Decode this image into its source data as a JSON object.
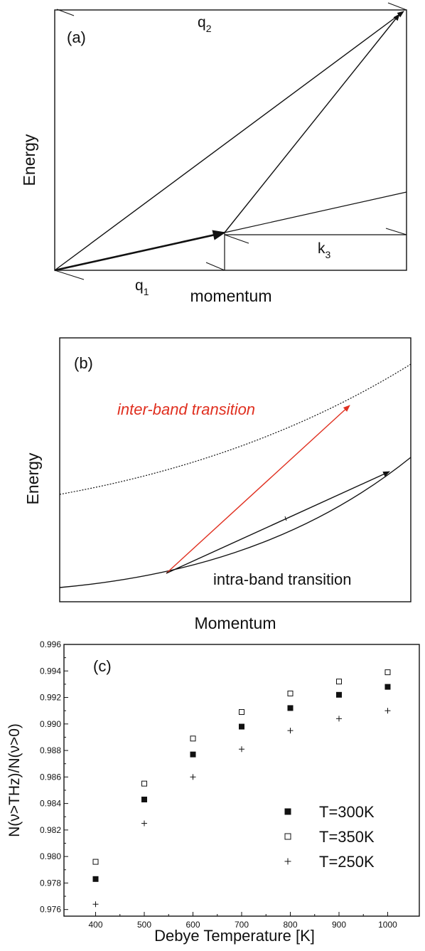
{
  "panel_a": {
    "tag": "(a)",
    "ylabel": "Energy",
    "xlabel": "momentum",
    "q1_main": "q",
    "q1_sub": "1",
    "q2_main": "q",
    "q2_sub": "2",
    "k3_main": "k",
    "k3_sub": "3"
  },
  "panel_b": {
    "tag": "(b)",
    "ylabel": "Energy",
    "xlabel": "Momentum",
    "inter_label": "inter-band transition",
    "intra_label": "intra-band transition",
    "inter_color": "#e03020"
  },
  "chart_data": {
    "type": "scatter",
    "tag": "(c)",
    "xlabel": "Debye Temperature [K]",
    "ylabel": "N(ν>THz)/N(ν>0)",
    "x": [
      400,
      500,
      600,
      700,
      800,
      900,
      1000
    ],
    "xticks": [
      "400",
      "500",
      "600",
      "700",
      "800",
      "900",
      "1000"
    ],
    "xlim": [
      335,
      1065
    ],
    "ylim": [
      0.9755,
      0.996
    ],
    "yticks": [
      "0.976",
      "0.978",
      "0.980",
      "0.982",
      "0.984",
      "0.986",
      "0.988",
      "0.990",
      "0.992",
      "0.994",
      "0.996"
    ],
    "legend_position": "lower-right",
    "series": [
      {
        "name": "T=300K",
        "marker": "filled-square",
        "values": [
          0.9783,
          0.9843,
          0.9877,
          0.9898,
          0.9912,
          0.9922,
          0.9928
        ]
      },
      {
        "name": "T=350K",
        "marker": "open-square",
        "values": [
          0.9796,
          0.9855,
          0.9889,
          0.9909,
          0.9923,
          0.9932,
          0.9939
        ]
      },
      {
        "name": "T=250K",
        "marker": "plus",
        "values": [
          0.9764,
          0.9825,
          0.986,
          0.9881,
          0.9895,
          0.9904,
          0.991
        ]
      }
    ]
  }
}
